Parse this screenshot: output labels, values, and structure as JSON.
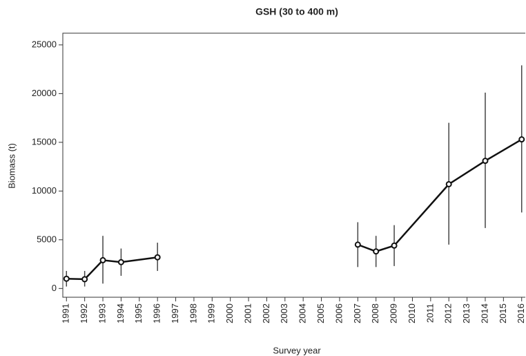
{
  "chart_data": {
    "type": "line-errorbar",
    "title": "GSH (30 to 400 m)",
    "x_label": "Survey year",
    "y_label": "Biomass (t)",
    "xlim": [
      1990.8,
      2016.2
    ],
    "xticks": [
      1991,
      1992,
      1993,
      1994,
      1995,
      1996,
      1997,
      1998,
      1999,
      2000,
      2001,
      2002,
      2003,
      2004,
      2005,
      2006,
      2007,
      2008,
      2009,
      2010,
      2011,
      2012,
      2013,
      2014,
      2015,
      2016
    ],
    "ylim": [
      -900,
      26200
    ],
    "yticks": [
      0,
      5000,
      10000,
      15000,
      20000,
      25000
    ],
    "color": "#111111",
    "series": [
      {
        "x": [
          1991,
          1992,
          1993,
          1994,
          1996
        ],
        "values": [
          1000,
          950,
          2900,
          2700,
          3200
        ],
        "lower": [
          200,
          200,
          500,
          1300,
          1800
        ],
        "upper": [
          1800,
          1800,
          5400,
          4100,
          4700
        ]
      },
      {
        "x": [
          2007,
          2008,
          2009,
          2012,
          2014,
          2016
        ],
        "values": [
          4500,
          3800,
          4400,
          10700,
          13100,
          15300
        ],
        "lower": [
          2200,
          2200,
          2300,
          4500,
          6200,
          7800
        ],
        "upper": [
          6800,
          5400,
          6500,
          17000,
          20100,
          22900
        ]
      }
    ]
  }
}
